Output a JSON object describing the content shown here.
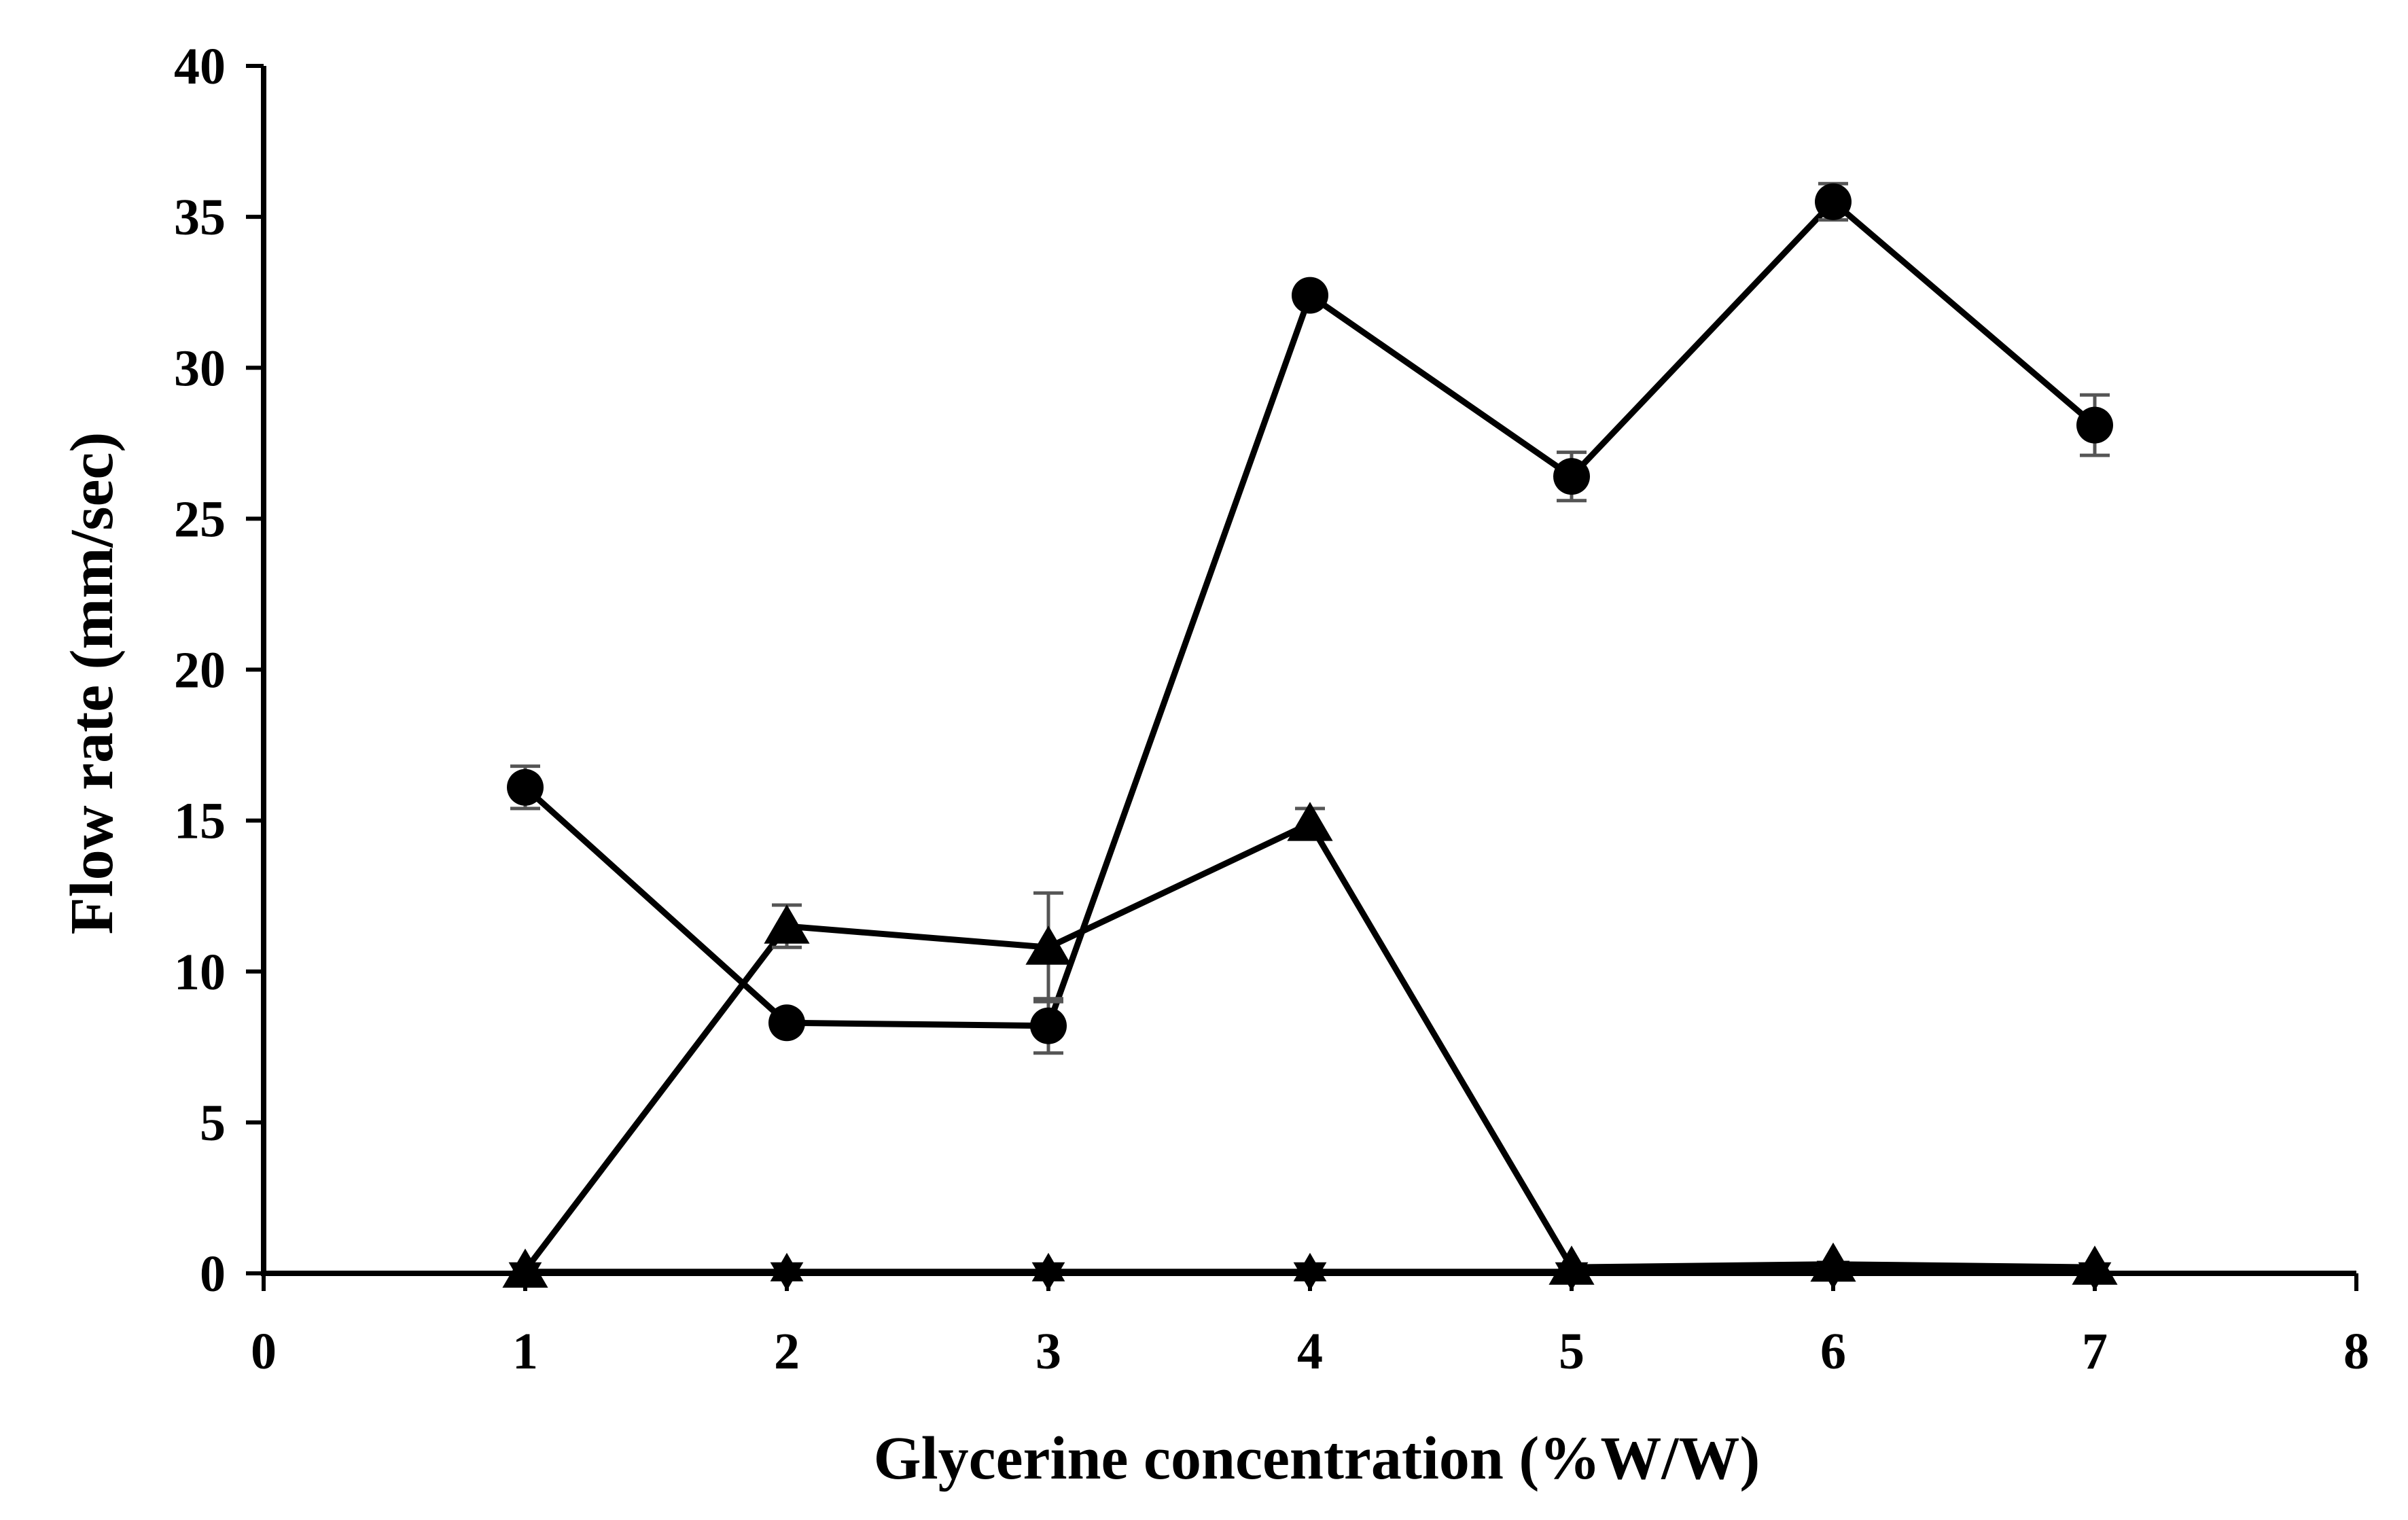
{
  "chart_data": {
    "type": "line",
    "title": "",
    "xlabel": "Glycerine concentration (%W/W)",
    "ylabel": "Flow rate (mm/sec)",
    "xlim": [
      0,
      8
    ],
    "ylim": [
      0,
      40
    ],
    "x_ticks": [
      "0",
      "1",
      "2",
      "3",
      "4",
      "5",
      "6",
      "7",
      "8"
    ],
    "y_ticks": [
      "0",
      "5",
      "10",
      "15",
      "20",
      "25",
      "30",
      "35",
      "40"
    ],
    "grid": false,
    "legend": "none",
    "series": [
      {
        "marker": "circle",
        "color": "#000000",
        "points": [
          {
            "x": 1,
            "y": 16.1,
            "err": 0.7
          },
          {
            "x": 2,
            "y": 8.3,
            "err": 0
          },
          {
            "x": 3,
            "y": 8.2,
            "err": 0.9
          },
          {
            "x": 4,
            "y": 32.4,
            "err": 0
          },
          {
            "x": 5,
            "y": 26.4,
            "err": 0.8
          },
          {
            "x": 6,
            "y": 35.5,
            "err": 0.6
          },
          {
            "x": 7,
            "y": 28.1,
            "err": 1.0
          }
        ]
      },
      {
        "marker": "triangle",
        "color": "#000000",
        "points": [
          {
            "x": 1,
            "y": 0.1,
            "err": 0
          },
          {
            "x": 2,
            "y": 11.5,
            "err": 0.7
          },
          {
            "x": 3,
            "y": 10.8,
            "err": 1.8
          },
          {
            "x": 4,
            "y": 14.9,
            "err": 0.5
          },
          {
            "x": 5,
            "y": 0.2,
            "err": 0
          },
          {
            "x": 6,
            "y": 0.3,
            "err": 0
          },
          {
            "x": 7,
            "y": 0.2,
            "err": 0
          }
        ]
      },
      {
        "marker": "star",
        "color": "#000000",
        "points": [
          {
            "x": 1,
            "y": 0.05,
            "err": 0
          },
          {
            "x": 2,
            "y": 0.05,
            "err": 0
          },
          {
            "x": 3,
            "y": 0.05,
            "err": 0
          },
          {
            "x": 4,
            "y": 0.05,
            "err": 0
          },
          {
            "x": 5,
            "y": 0.05,
            "err": 0
          },
          {
            "x": 6,
            "y": 0.1,
            "err": 0
          },
          {
            "x": 7,
            "y": 0.05,
            "err": 0
          }
        ]
      }
    ]
  }
}
